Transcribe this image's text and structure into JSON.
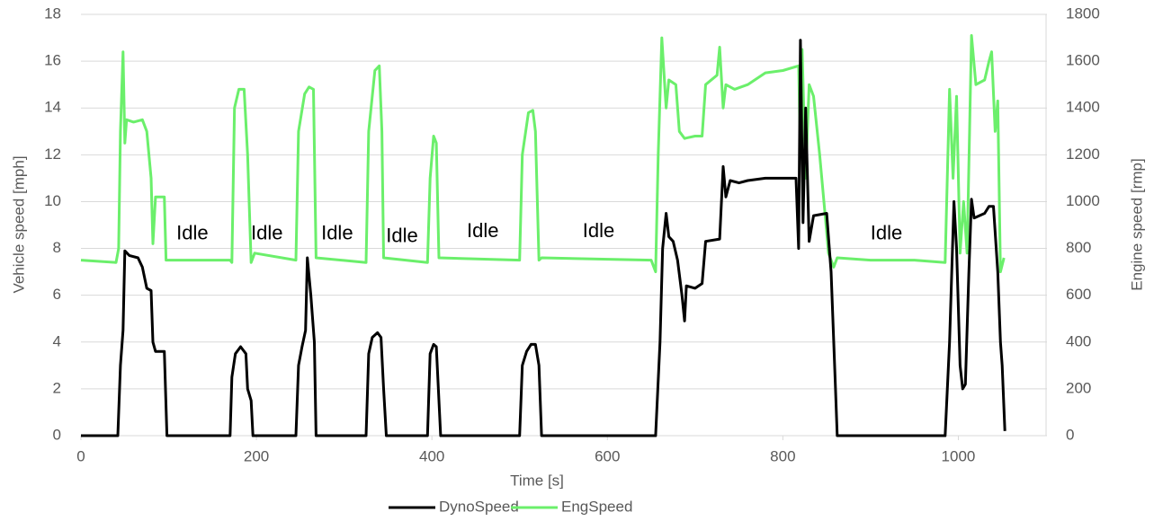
{
  "chart_data": {
    "type": "line",
    "xlabel": "Time [s]",
    "ylabel": "Vehicle speed [mph]",
    "y2label": "Engine speed [rmp]",
    "xlim": [
      0,
      1100
    ],
    "xticks": [
      0,
      200,
      400,
      600,
      800,
      1000
    ],
    "ylim": [
      0,
      18
    ],
    "yticks": [
      0,
      2,
      4,
      6,
      8,
      10,
      12,
      14,
      16,
      18
    ],
    "y2lim": [
      0,
      1800
    ],
    "y2ticks": [
      0,
      200,
      400,
      600,
      800,
      1000,
      1200,
      1400,
      1600,
      1800
    ],
    "grid": true,
    "legend": "bottom",
    "annotations": [
      {
        "text": "Idle",
        "x": 127,
        "y": 8.6
      },
      {
        "text": "Idle",
        "x": 212,
        "y": 8.6
      },
      {
        "text": "Idle",
        "x": 292,
        "y": 8.6
      },
      {
        "text": "Idle",
        "x": 366,
        "y": 8.5
      },
      {
        "text": "Idle",
        "x": 458,
        "y": 8.7
      },
      {
        "text": "Idle",
        "x": 590,
        "y": 8.7
      },
      {
        "text": "Idle",
        "x": 918,
        "y": 8.6
      }
    ],
    "series": [
      {
        "name": "DynoSpeed",
        "color": "#000000",
        "x": [
          0,
          42,
          45,
          48,
          50,
          55,
          65,
          70,
          75,
          80,
          82,
          85,
          95,
          98,
          170,
          172,
          176,
          182,
          188,
          190,
          194,
          196,
          245,
          248,
          252,
          256,
          258,
          262,
          266,
          268,
          325,
          328,
          332,
          338,
          342,
          345,
          348,
          395,
          398,
          402,
          405,
          408,
          410,
          500,
          503,
          508,
          513,
          518,
          522,
          525,
          655,
          660,
          663,
          667,
          670,
          675,
          680,
          685,
          688,
          690,
          700,
          708,
          712,
          728,
          732,
          735,
          740,
          750,
          760,
          780,
          800,
          815,
          818,
          820,
          823,
          826,
          830,
          835,
          850,
          855,
          860,
          862,
          985,
          990,
          995,
          998,
          1002,
          1005,
          1008,
          1012,
          1015,
          1018,
          1030,
          1035,
          1040,
          1045,
          1048,
          1050,
          1053
        ],
        "values": [
          0,
          0,
          3,
          4.5,
          7.9,
          7.7,
          7.6,
          7.2,
          6.3,
          6.2,
          4,
          3.6,
          3.6,
          0,
          0,
          2.5,
          3.5,
          3.8,
          3.5,
          2,
          1.5,
          0,
          0,
          3,
          3.8,
          4.5,
          7.6,
          6,
          4,
          0,
          0,
          3.5,
          4.2,
          4.4,
          4.2,
          2,
          0,
          0,
          3.5,
          3.9,
          3.8,
          1.5,
          0,
          0,
          3,
          3.6,
          3.9,
          3.9,
          3,
          0,
          0,
          4,
          8,
          9.5,
          8.5,
          8.3,
          7.5,
          6,
          4.9,
          6.4,
          6.3,
          6.5,
          8.3,
          8.4,
          11.5,
          10.2,
          10.9,
          10.8,
          10.9,
          11,
          11,
          11,
          8,
          16.9,
          9.1,
          14,
          8.3,
          9.4,
          9.5,
          7,
          2,
          0,
          0,
          4,
          10,
          8,
          3,
          2,
          2.2,
          7,
          10.1,
          9.3,
          9.5,
          9.8,
          9.8,
          7,
          4,
          3,
          0.2
        ]
      },
      {
        "name": "EngSpeed",
        "color": "#6bef6b",
        "axis": "y2",
        "x": [
          0,
          40,
          43,
          45,
          48,
          50,
          52,
          60,
          70,
          75,
          80,
          82,
          85,
          95,
          97,
          100,
          170,
          172,
          175,
          180,
          186,
          190,
          194,
          198,
          245,
          248,
          255,
          260,
          265,
          268,
          325,
          328,
          335,
          340,
          343,
          345,
          395,
          398,
          402,
          405,
          408,
          500,
          503,
          510,
          515,
          518,
          522,
          525,
          650,
          655,
          658,
          662,
          667,
          670,
          678,
          682,
          688,
          700,
          708,
          712,
          725,
          728,
          732,
          735,
          745,
          760,
          780,
          800,
          818,
          820,
          822,
          826,
          830,
          835,
          842,
          848,
          852,
          858,
          862,
          900,
          950,
          985,
          990,
          994,
          998,
          1002,
          1006,
          1010,
          1015,
          1020,
          1030,
          1035,
          1038,
          1042,
          1045,
          1048,
          1052
        ],
        "values": [
          750,
          740,
          800,
          1300,
          1640,
          1250,
          1350,
          1340,
          1350,
          1300,
          1100,
          820,
          1020,
          1020,
          750,
          750,
          750,
          740,
          1400,
          1480,
          1480,
          1200,
          740,
          780,
          750,
          1300,
          1460,
          1490,
          1480,
          760,
          740,
          1300,
          1560,
          1580,
          1300,
          760,
          740,
          1100,
          1280,
          1250,
          760,
          750,
          1200,
          1380,
          1390,
          1300,
          750,
          760,
          750,
          700,
          1200,
          1700,
          1400,
          1520,
          1500,
          1300,
          1270,
          1280,
          1280,
          1500,
          1540,
          1660,
          1400,
          1500,
          1480,
          1500,
          1550,
          1560,
          1580,
          1200,
          1650,
          1100,
          1500,
          1450,
          1200,
          950,
          780,
          720,
          760,
          750,
          750,
          740,
          1480,
          1100,
          1450,
          780,
          1000,
          780,
          1710,
          1500,
          1520,
          1600,
          1640,
          1300,
          1430,
          700,
          760
        ]
      }
    ]
  }
}
